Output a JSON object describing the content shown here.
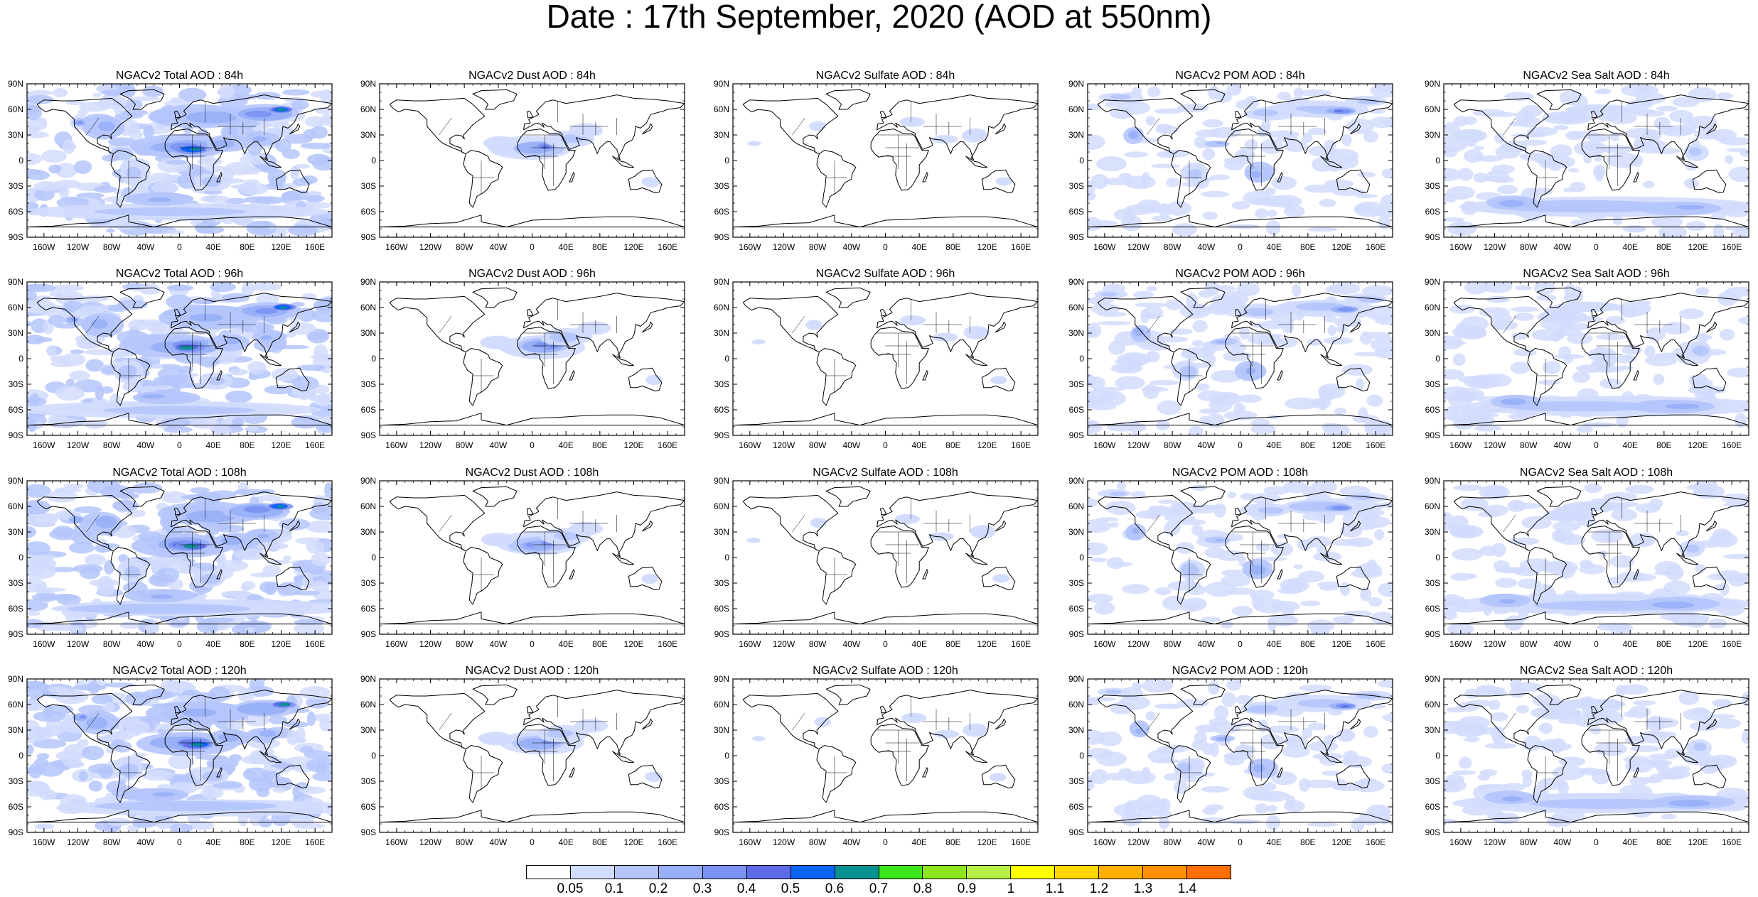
{
  "title": "Date : 17th September, 2020 (AOD at 550nm)",
  "forecast_hours": [
    "84h",
    "96h",
    "108h",
    "120h"
  ],
  "panel_titles": [
    [
      "NGACv2 Total AOD : 84h",
      "NGACv2 Dust AOD : 84h",
      "NGACv2 Sulfate AOD : 84h",
      "NGACv2 POM AOD : 84h",
      "NGACv2 Sea Salt AOD : 84h"
    ],
    [
      "NGACv2 Total AOD : 96h",
      "NGACv2 Dust AOD : 96h",
      "NGACv2 Sulfate AOD : 96h",
      "NGACv2 POM AOD : 96h",
      "NGACv2 Sea Salt AOD : 96h"
    ],
    [
      "NGACv2 Total AOD : 108h",
      "NGACv2 Dust AOD : 108h",
      "NGACv2 Sulfate AOD : 108h",
      "NGACv2 POM AOD : 108h",
      "NGACv2 Sea Salt AOD : 108h"
    ],
    [
      "NGACv2 Total AOD : 120h",
      "NGACv2 Dust AOD : 120h",
      "NGACv2 Sulfate AOD : 120h",
      "NGACv2 POM AOD : 120h",
      "NGACv2 Sea Salt  AOD : 120h"
    ]
  ],
  "lat_ticks": [
    "90N",
    "60N",
    "30N",
    "0",
    "30S",
    "60S",
    "90S"
  ],
  "lon_ticks": [
    "160W",
    "120W",
    "80W",
    "40W",
    "0",
    "40E",
    "80E",
    "120E",
    "160E"
  ],
  "colorbar": {
    "colors": [
      "#ffffff",
      "#d2dcfd",
      "#b5c5fc",
      "#98aff7",
      "#7b92f1",
      "#5d6be8",
      "#0a64f5",
      "#0a9191",
      "#3ce61e",
      "#8ce61e",
      "#b9f046",
      "#ffff00",
      "#ffd700",
      "#ffaf00",
      "#ff9100",
      "#ff6e00",
      "#ff2d14"
    ],
    "labels": [
      "0.05",
      "0.1",
      "0.2",
      "0.3",
      "0.4",
      "0.5",
      "0.6",
      "0.7",
      "0.8",
      "0.9",
      "1",
      "1.1",
      "1.2",
      "1.3",
      "1.4"
    ]
  }
}
